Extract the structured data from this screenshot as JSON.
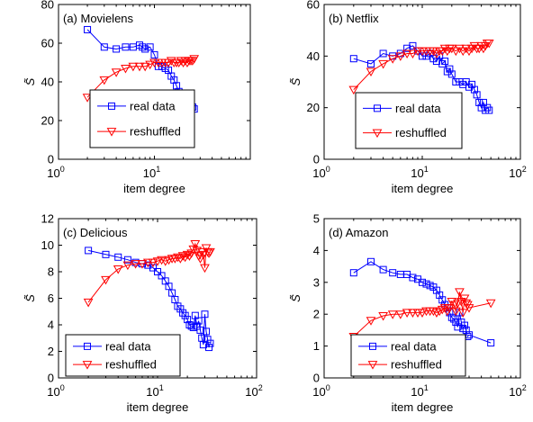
{
  "colors": {
    "real_data": "#0000ff",
    "reshuffled": "#ff0000",
    "axes": "#000000",
    "background": "#ffffff"
  },
  "chart_data": [
    {
      "type": "line",
      "title": "(a) Movielens",
      "xlabel": "item degree",
      "ylabel": "S̃",
      "xscale": "log",
      "xlim": [
        1,
        100
      ],
      "ylim": [
        0,
        80
      ],
      "xticks": [
        {
          "value": 1,
          "base": "10",
          "exp": "0"
        },
        {
          "value": 10,
          "base": "10",
          "exp": "1"
        }
      ],
      "yticks": [
        0,
        20,
        40,
        60,
        80
      ],
      "legend_position": "bottom-center",
      "series": [
        {
          "name": "real data",
          "marker": "square",
          "x": [
            2,
            3,
            4,
            5,
            6,
            7,
            7.5,
            8,
            9,
            10,
            11,
            12,
            13,
            14,
            15,
            16,
            17,
            18,
            19,
            20,
            21,
            22,
            23,
            24,
            25,
            26
          ],
          "y": [
            67,
            58,
            57,
            58,
            58,
            59,
            58,
            57,
            58,
            54,
            48,
            48,
            47,
            46,
            43,
            41,
            38,
            35,
            33,
            30,
            28,
            25,
            23,
            22,
            27,
            26
          ]
        },
        {
          "name": "reshuffled",
          "marker": "triangle-down",
          "x": [
            2,
            3,
            4,
            5,
            6,
            7,
            8,
            9,
            10,
            11,
            12,
            13,
            14,
            15,
            16,
            17,
            18,
            19,
            20,
            21,
            22,
            23,
            24,
            25,
            26
          ],
          "y": [
            32,
            41,
            45,
            47,
            48,
            48,
            48,
            49,
            50,
            50,
            50,
            50,
            50,
            51,
            50,
            50,
            50,
            51,
            50,
            51,
            50,
            51,
            51,
            51,
            52
          ]
        }
      ]
    },
    {
      "type": "line",
      "title": "(b) Netflix",
      "xlabel": "item degree",
      "ylabel": "S̃",
      "xscale": "log",
      "xlim": [
        1,
        100
      ],
      "ylim": [
        0,
        60
      ],
      "xticks": [
        {
          "value": 1,
          "base": "10",
          "exp": "0"
        },
        {
          "value": 10,
          "base": "10",
          "exp": "1"
        },
        {
          "value": 100,
          "base": "10",
          "exp": "2"
        }
      ],
      "yticks": [
        0,
        20,
        40,
        60
      ],
      "legend_position": "bottom-center",
      "series": [
        {
          "name": "real data",
          "marker": "square",
          "x": [
            2,
            3,
            4,
            5,
            6,
            7,
            8,
            9,
            10,
            11,
            12,
            13,
            14,
            15,
            16,
            17,
            18,
            19,
            20,
            22,
            24,
            26,
            28,
            30,
            32,
            34,
            36,
            38,
            40,
            42,
            44,
            46,
            48
          ],
          "y": [
            39,
            37,
            41,
            40,
            41,
            43,
            44,
            42,
            40,
            40,
            41,
            39,
            38,
            40,
            37,
            38,
            34,
            35,
            33,
            30,
            30,
            29,
            30,
            28,
            29,
            27,
            25,
            22,
            20,
            22,
            19,
            20,
            19
          ]
        },
        {
          "name": "reshuffled",
          "marker": "triangle-down",
          "x": [
            2,
            3,
            4,
            5,
            6,
            7,
            8,
            9,
            10,
            11,
            12,
            13,
            14,
            15,
            16,
            17,
            18,
            19,
            20,
            22,
            24,
            26,
            28,
            30,
            32,
            34,
            36,
            38,
            40,
            42,
            44,
            46,
            48
          ],
          "y": [
            27,
            34,
            37,
            39,
            40,
            41,
            41,
            42,
            42,
            42,
            42,
            42,
            41,
            42,
            42,
            43,
            42,
            43,
            43,
            42,
            43,
            42,
            43,
            42,
            43,
            44,
            43,
            43,
            44,
            43,
            44,
            45,
            45
          ]
        }
      ]
    },
    {
      "type": "line",
      "title": "(c) Delicious",
      "xlabel": "item degree",
      "ylabel": "S̃",
      "xscale": "log",
      "xlim": [
        1,
        100
      ],
      "ylim": [
        0,
        12
      ],
      "xticks": [
        {
          "value": 1,
          "base": "10",
          "exp": "0"
        },
        {
          "value": 10,
          "base": "10",
          "exp": "1"
        },
        {
          "value": 100,
          "base": "10",
          "exp": "2"
        }
      ],
      "yticks": [
        0,
        2,
        4,
        6,
        8,
        10,
        12
      ],
      "legend_position": "bottom-center",
      "series": [
        {
          "name": "real data",
          "marker": "square",
          "x": [
            2,
            3,
            4,
            5,
            6,
            7,
            8,
            9,
            10,
            11,
            12,
            13,
            14,
            15,
            16,
            17,
            18,
            19,
            20,
            21,
            22,
            23,
            24,
            25,
            26,
            27,
            28,
            29,
            30,
            31,
            32,
            33,
            34
          ],
          "y": [
            9.6,
            9.3,
            9.1,
            8.9,
            8.7,
            8.6,
            8.5,
            8.3,
            8.0,
            7.7,
            7.3,
            6.9,
            6.4,
            5.9,
            5.4,
            5.2,
            4.9,
            4.7,
            4.4,
            4.0,
            3.9,
            3.8,
            4.7,
            3.9,
            4.3,
            3.6,
            3.0,
            2.5,
            4.8,
            3.5,
            2.9,
            2.3,
            2.6
          ]
        },
        {
          "name": "reshuffled",
          "marker": "triangle-down",
          "x": [
            2,
            3,
            4,
            5,
            6,
            7,
            8,
            9,
            10,
            11,
            12,
            13,
            14,
            15,
            16,
            17,
            18,
            19,
            20,
            21,
            22,
            23,
            24,
            25,
            26,
            27,
            28,
            29,
            30,
            31,
            32,
            33,
            34
          ],
          "y": [
            5.7,
            7.4,
            8.2,
            8.5,
            8.6,
            8.6,
            8.7,
            8.7,
            8.8,
            8.9,
            8.8,
            8.9,
            9.0,
            9.0,
            9.1,
            9.0,
            9.2,
            9.1,
            9.3,
            9.2,
            9.4,
            9.7,
            10.1,
            9.6,
            9.2,
            9.0,
            9.5,
            9.3,
            8.3,
            9.8,
            9.5,
            9.4,
            9.5
          ]
        }
      ]
    },
    {
      "type": "line",
      "title": "(d) Amazon",
      "xlabel": "item degree",
      "ylabel": "S̃",
      "xscale": "log",
      "xlim": [
        1,
        100
      ],
      "ylim": [
        0,
        5
      ],
      "xticks": [
        {
          "value": 1,
          "base": "10",
          "exp": "0"
        },
        {
          "value": 10,
          "base": "10",
          "exp": "1"
        },
        {
          "value": 100,
          "base": "10",
          "exp": "2"
        }
      ],
      "yticks": [
        0,
        1,
        2,
        3,
        4,
        5
      ],
      "legend_position": "bottom-center",
      "series": [
        {
          "name": "real data",
          "marker": "square",
          "x": [
            2,
            3,
            4,
            5,
            6,
            7,
            8,
            9,
            10,
            11,
            12,
            13,
            14,
            15,
            16,
            17,
            18,
            19,
            20,
            21,
            22,
            23,
            24,
            25,
            26,
            27,
            28,
            29,
            30,
            50
          ],
          "y": [
            3.3,
            3.65,
            3.4,
            3.3,
            3.25,
            3.25,
            3.15,
            3.1,
            3.0,
            2.95,
            2.9,
            2.85,
            2.75,
            2.6,
            2.45,
            2.3,
            2.2,
            2.05,
            1.9,
            1.85,
            1.75,
            1.6,
            2.05,
            1.75,
            1.55,
            1.65,
            1.5,
            1.3,
            1.35,
            1.1
          ]
        },
        {
          "name": "reshuffled",
          "marker": "triangle-down",
          "x": [
            2,
            3,
            4,
            5,
            6,
            7,
            8,
            9,
            10,
            11,
            12,
            13,
            14,
            15,
            16,
            17,
            18,
            19,
            20,
            21,
            22,
            23,
            24,
            25,
            26,
            27,
            28,
            29,
            30,
            50
          ],
          "y": [
            1.3,
            1.8,
            1.95,
            2.0,
            2.0,
            2.05,
            2.05,
            2.05,
            2.05,
            2.1,
            2.1,
            2.1,
            2.05,
            2.1,
            2.15,
            2.2,
            2.1,
            2.2,
            2.4,
            2.3,
            2.1,
            2.35,
            2.7,
            2.4,
            2.05,
            2.5,
            2.35,
            2.3,
            2.2,
            2.35
          ]
        }
      ]
    }
  ]
}
